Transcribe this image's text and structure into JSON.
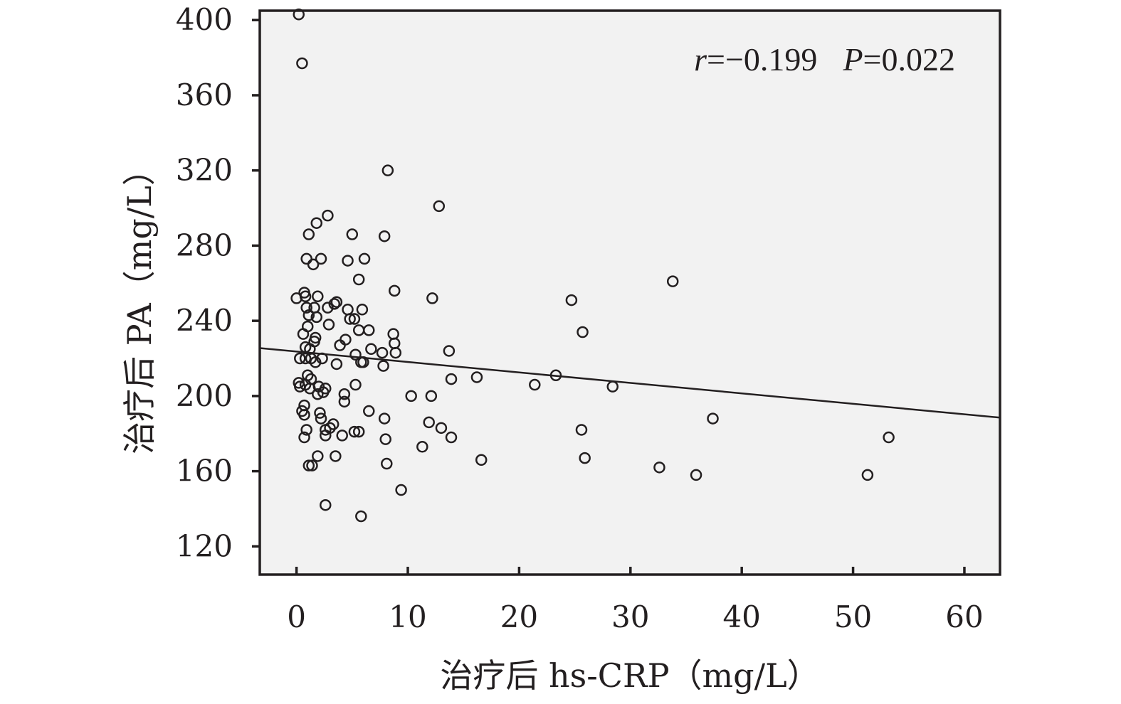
{
  "chart_data": {
    "type": "scatter",
    "title": "",
    "xlabel": "治疗后 hs-CRP（mg/L）",
    "ylabel": "治疗后 PA（mg/L）",
    "xlim": [
      -3.3,
      63.2
    ],
    "ylim": [
      105,
      405
    ],
    "xticks": [
      "0",
      "10",
      "20",
      "30",
      "40",
      "50",
      "60"
    ],
    "yticks": [
      "120",
      "160",
      "200",
      "240",
      "280",
      "320",
      "360",
      "400"
    ],
    "grid": false,
    "annotation": {
      "r_symbol": "r",
      "r_value": "=−0.199",
      "p_symbol": "P",
      "p_value": "=0.022"
    },
    "regression_line": {
      "x": [
        -3.3,
        63.2
      ],
      "y": [
        225.5,
        188.5
      ]
    },
    "points": [
      [
        0.2,
        403
      ],
      [
        0.5,
        377
      ],
      [
        8.2,
        320
      ],
      [
        12.8,
        301
      ],
      [
        2.8,
        296
      ],
      [
        1.8,
        292
      ],
      [
        1.1,
        286
      ],
      [
        5.0,
        286
      ],
      [
        7.9,
        285
      ],
      [
        0.9,
        273
      ],
      [
        2.2,
        273
      ],
      [
        4.6,
        272
      ],
      [
        6.1,
        273
      ],
      [
        1.5,
        270
      ],
      [
        5.6,
        262
      ],
      [
        33.8,
        261
      ],
      [
        0.0,
        252
      ],
      [
        0.7,
        255
      ],
      [
        0.8,
        253
      ],
      [
        1.9,
        253
      ],
      [
        8.8,
        256
      ],
      [
        12.2,
        252
      ],
      [
        24.7,
        251
      ],
      [
        0.9,
        247
      ],
      [
        1.6,
        247
      ],
      [
        2.8,
        247
      ],
      [
        3.4,
        249
      ],
      [
        3.6,
        250
      ],
      [
        4.6,
        246
      ],
      [
        5.9,
        246
      ],
      [
        1.1,
        243
      ],
      [
        1.8,
        242
      ],
      [
        4.8,
        241
      ],
      [
        5.2,
        241
      ],
      [
        1.0,
        237
      ],
      [
        2.9,
        238
      ],
      [
        5.6,
        235
      ],
      [
        6.5,
        235
      ],
      [
        8.7,
        233
      ],
      [
        25.7,
        234
      ],
      [
        0.6,
        233
      ],
      [
        1.7,
        231
      ],
      [
        1.6,
        229
      ],
      [
        4.4,
        230
      ],
      [
        8.8,
        228
      ],
      [
        0.8,
        226
      ],
      [
        1.2,
        225
      ],
      [
        3.9,
        227
      ],
      [
        6.7,
        225
      ],
      [
        7.7,
        223
      ],
      [
        8.9,
        223
      ],
      [
        13.7,
        224
      ],
      [
        0.3,
        220
      ],
      [
        0.8,
        220
      ],
      [
        1.3,
        220
      ],
      [
        1.7,
        218
      ],
      [
        2.3,
        220
      ],
      [
        3.6,
        217
      ],
      [
        5.3,
        222
      ],
      [
        5.8,
        218
      ],
      [
        6.0,
        218
      ],
      [
        7.8,
        216
      ],
      [
        1.0,
        211
      ],
      [
        1.3,
        209
      ],
      [
        13.9,
        209
      ],
      [
        16.2,
        210
      ],
      [
        23.3,
        211
      ],
      [
        0.2,
        207
      ],
      [
        0.3,
        205
      ],
      [
        0.8,
        206
      ],
      [
        1.2,
        204
      ],
      [
        2.0,
        205
      ],
      [
        2.6,
        204
      ],
      [
        5.3,
        206
      ],
      [
        21.4,
        206
      ],
      [
        28.4,
        205
      ],
      [
        1.9,
        201
      ],
      [
        2.4,
        202
      ],
      [
        4.3,
        201
      ],
      [
        10.3,
        200
      ],
      [
        12.1,
        200
      ],
      [
        0.7,
        195
      ],
      [
        4.3,
        197
      ],
      [
        0.5,
        192
      ],
      [
        0.7,
        190
      ],
      [
        2.1,
        191
      ],
      [
        6.5,
        192
      ],
      [
        2.2,
        188
      ],
      [
        7.9,
        188
      ],
      [
        37.4,
        188
      ],
      [
        3.3,
        185
      ],
      [
        11.9,
        186
      ],
      [
        13.0,
        183
      ],
      [
        0.9,
        182
      ],
      [
        2.6,
        182
      ],
      [
        3.0,
        183
      ],
      [
        5.2,
        181
      ],
      [
        5.6,
        181
      ],
      [
        25.6,
        182
      ],
      [
        0.7,
        178
      ],
      [
        2.6,
        179
      ],
      [
        4.1,
        179
      ],
      [
        8.0,
        177
      ],
      [
        13.9,
        178
      ],
      [
        53.2,
        178
      ],
      [
        11.3,
        173
      ],
      [
        1.9,
        168
      ],
      [
        3.5,
        168
      ],
      [
        16.6,
        166
      ],
      [
        25.9,
        167
      ],
      [
        1.1,
        163
      ],
      [
        1.4,
        163
      ],
      [
        8.1,
        164
      ],
      [
        32.6,
        162
      ],
      [
        35.9,
        158
      ],
      [
        51.3,
        158
      ],
      [
        9.4,
        150
      ],
      [
        2.6,
        142
      ],
      [
        5.8,
        136
      ]
    ]
  }
}
